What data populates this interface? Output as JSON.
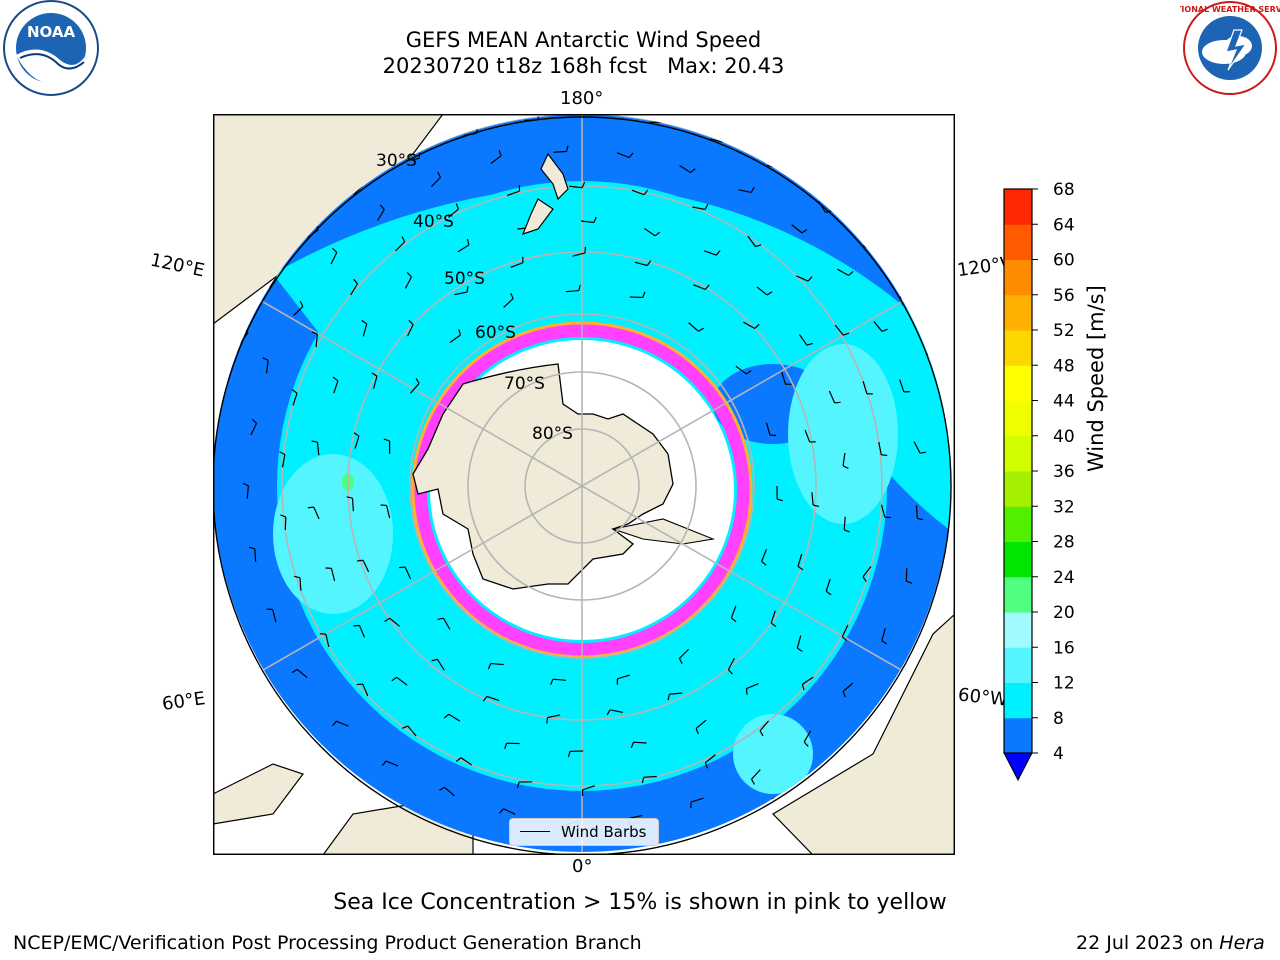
{
  "header": {
    "title_line1": "GEFS MEAN Antarctic Wind Speed",
    "title_line2": "20230720 t18z 168h fcst   Max: 20.43"
  },
  "logos": {
    "noaa": "NOAA",
    "nws": "NATIONAL WEATHER SERVICE"
  },
  "map": {
    "longitude_labels": {
      "top": "180°",
      "bottom": "0°",
      "upper_left": "120°E",
      "upper_right": "120°W",
      "lower_left": "60°E",
      "lower_right": "60°W"
    },
    "latitude_labels": [
      "30°S",
      "40°S",
      "50°S",
      "60°S",
      "70°S",
      "80°S"
    ],
    "legend_label": "Wind Barbs",
    "colors": {
      "land": "#efebd8",
      "ice_shelf": "#ffffff",
      "calm": "#0a78ff",
      "moderate": "#00f0ff",
      "fresh": "#55f5ff",
      "sea_ice_edge": "#ff40ff",
      "sea_ice_edge2": "#ffb030"
    }
  },
  "colorbar": {
    "label": "Wind Speed [m/s]",
    "ticks": [
      "4",
      "8",
      "12",
      "16",
      "20",
      "24",
      "28",
      "32",
      "36",
      "40",
      "44",
      "48",
      "52",
      "56",
      "60",
      "64",
      "68"
    ],
    "colors": [
      "#0a78ff",
      "#00f0ff",
      "#55f5ff",
      "#a0faff",
      "#50ff80",
      "#00e600",
      "#50f000",
      "#a5f000",
      "#d2ff00",
      "#f0ff00",
      "#ffff00",
      "#ffd700",
      "#ffb000",
      "#ff8c00",
      "#ff5a00",
      "#ff2800"
    ],
    "under_color": "#0000ff",
    "over_color": "#ff0000"
  },
  "notes": {
    "sea_ice": "Sea Ice Concentration > 15% is shown in pink to yellow"
  },
  "footer": {
    "left": "NCEP/EMC/Verification Post Processing Product Generation Branch",
    "date": "22 Jul 2023 on ",
    "host": "Hera"
  }
}
